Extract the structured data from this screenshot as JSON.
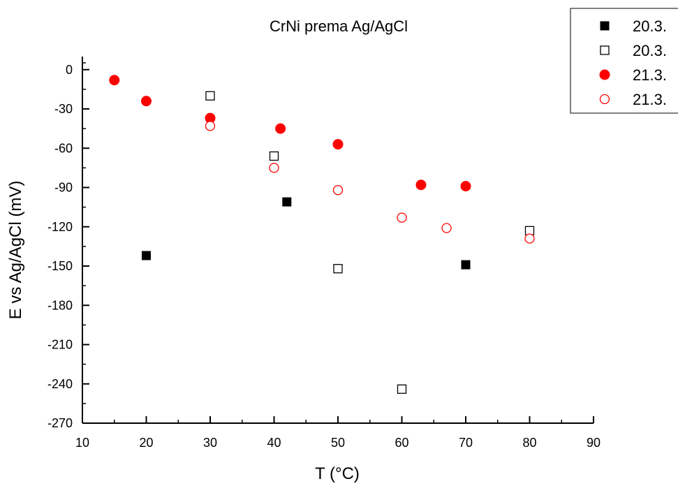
{
  "chart_data": {
    "type": "scatter",
    "title": "CrNi prema Ag/AgCl",
    "xlabel": "T (°C)",
    "ylabel": "E vs Ag/AgCl (mV)",
    "xlim": [
      10,
      90
    ],
    "ylim": [
      -270,
      10
    ],
    "xticks": [
      10,
      20,
      30,
      40,
      50,
      60,
      70,
      80,
      90
    ],
    "yticks": [
      0,
      -30,
      -60,
      -90,
      -120,
      -150,
      -180,
      -210,
      -240,
      -270
    ],
    "grid": false,
    "legend_position": "top-right",
    "series": [
      {
        "name": "20.3.",
        "marker": "square",
        "filled": true,
        "color": "#000000",
        "x": [
          20,
          42,
          70
        ],
        "y": [
          -142,
          -101,
          -149
        ]
      },
      {
        "name": "20.3.",
        "marker": "square",
        "filled": false,
        "color": "#000000",
        "x": [
          30,
          40,
          50,
          60,
          80
        ],
        "y": [
          -20,
          -66,
          -152,
          -244,
          -123
        ]
      },
      {
        "name": "21.3.",
        "marker": "circle",
        "filled": true,
        "color": "#ff0000",
        "x": [
          15,
          20,
          30,
          41,
          50,
          63,
          70
        ],
        "y": [
          -8,
          -24,
          -37,
          -45,
          -57,
          -88,
          -89
        ]
      },
      {
        "name": "21.3.",
        "marker": "circle",
        "filled": false,
        "color": "#ff0000",
        "x": [
          30,
          40,
          50,
          60,
          67,
          80
        ],
        "y": [
          -43,
          -75,
          -92,
          -113,
          -121,
          -129
        ]
      }
    ]
  }
}
